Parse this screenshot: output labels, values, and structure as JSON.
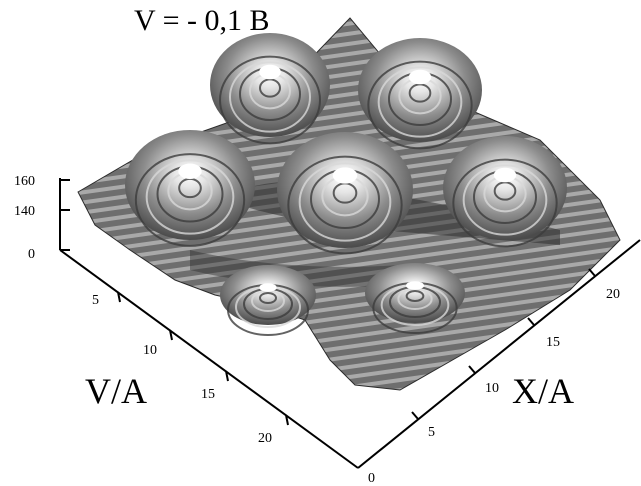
{
  "chart_data": {
    "type": "surface",
    "title": "V = - 0,1 B",
    "xlabel": "X/A",
    "ylabel": "V/A",
    "z_ticks": [
      "0",
      "140",
      "160"
    ],
    "x_ticks": [
      "0",
      "5",
      "10",
      "15",
      "20"
    ],
    "y_ticks": [
      "5",
      "10",
      "15",
      "20"
    ],
    "xlim": [
      0,
      24
    ],
    "ylim": [
      0,
      24
    ],
    "grid": false,
    "colors": {
      "surface_dark": "#3a3a3a",
      "surface_mid": "#8a8a8a",
      "surface_light": "#f2f2f2",
      "axis": "#000000"
    }
  }
}
